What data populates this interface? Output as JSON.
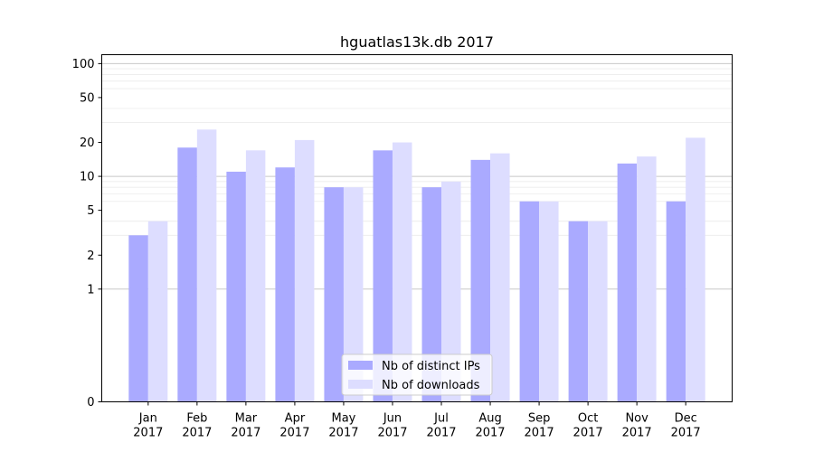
{
  "chart_data": {
    "type": "bar",
    "title": "hguatlas13k.db 2017",
    "xlabel": "",
    "ylabel": "",
    "categories": [
      {
        "month": "Jan",
        "year": "2017"
      },
      {
        "month": "Feb",
        "year": "2017"
      },
      {
        "month": "Mar",
        "year": "2017"
      },
      {
        "month": "Apr",
        "year": "2017"
      },
      {
        "month": "May",
        "year": "2017"
      },
      {
        "month": "Jun",
        "year": "2017"
      },
      {
        "month": "Jul",
        "year": "2017"
      },
      {
        "month": "Aug",
        "year": "2017"
      },
      {
        "month": "Sep",
        "year": "2017"
      },
      {
        "month": "Oct",
        "year": "2017"
      },
      {
        "month": "Nov",
        "year": "2017"
      },
      {
        "month": "Dec",
        "year": "2017"
      }
    ],
    "series": [
      {
        "name": "Nb of distinct IPs",
        "color": "#aaaaff",
        "values": [
          3,
          18,
          11,
          12,
          8,
          17,
          8,
          14,
          6,
          4,
          13,
          6
        ]
      },
      {
        "name": "Nb of downloads",
        "color": "#ddddff",
        "values": [
          4,
          26,
          17,
          21,
          8,
          20,
          9,
          16,
          6,
          4,
          15,
          22
        ]
      }
    ],
    "y_scale": "symlog",
    "ylim": [
      0,
      120
    ],
    "y_ticks": [
      "0",
      "1",
      "2",
      "5",
      "10",
      "20",
      "50",
      "100"
    ],
    "grid": "major and minor horizontal",
    "legend_position": "lower center"
  }
}
